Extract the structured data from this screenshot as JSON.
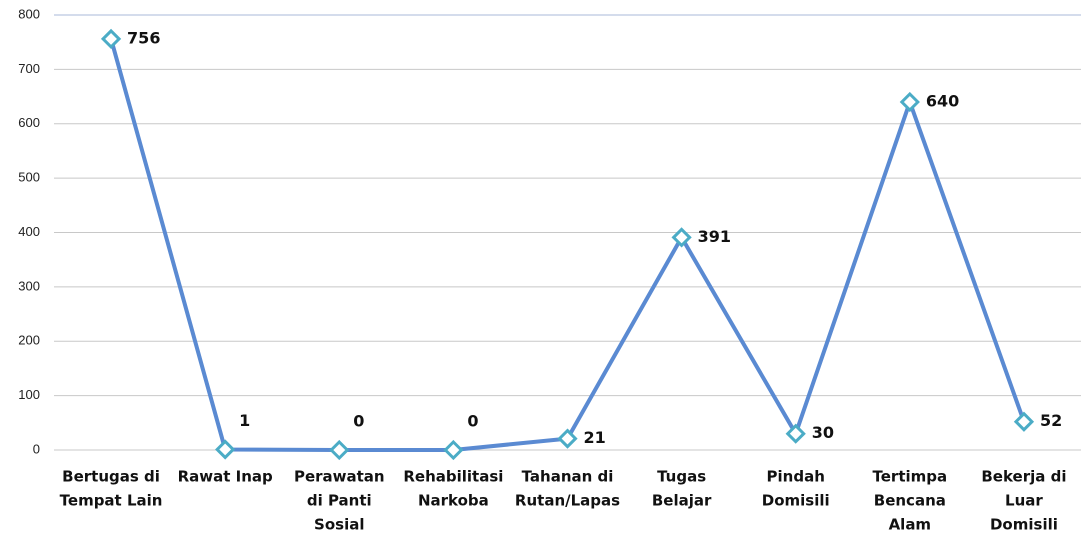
{
  "chart_data": {
    "type": "line",
    "categories": [
      [
        "Bertugas di",
        "Tempat Lain"
      ],
      [
        "Rawat Inap"
      ],
      [
        "Perawatan",
        "di Panti",
        "Sosial"
      ],
      [
        "Rehabilitasi",
        "Narkoba"
      ],
      [
        "Tahanan di",
        "Rutan/Lapas"
      ],
      [
        "Tugas",
        "Belajar"
      ],
      [
        "Pindah",
        "Domisili"
      ],
      [
        "Tertimpa",
        "Bencana",
        "Alam"
      ],
      [
        "Bekerja di",
        "Luar",
        "Domisili"
      ]
    ],
    "values": [
      756,
      1,
      0,
      0,
      21,
      391,
      30,
      640,
      52
    ],
    "color": "#5a8ad2",
    "marker_color": "#4bacc6",
    "ylim": [
      0,
      800
    ],
    "yticks": [
      0,
      100,
      200,
      300,
      400,
      500,
      600,
      700,
      800
    ],
    "grid": true
  }
}
